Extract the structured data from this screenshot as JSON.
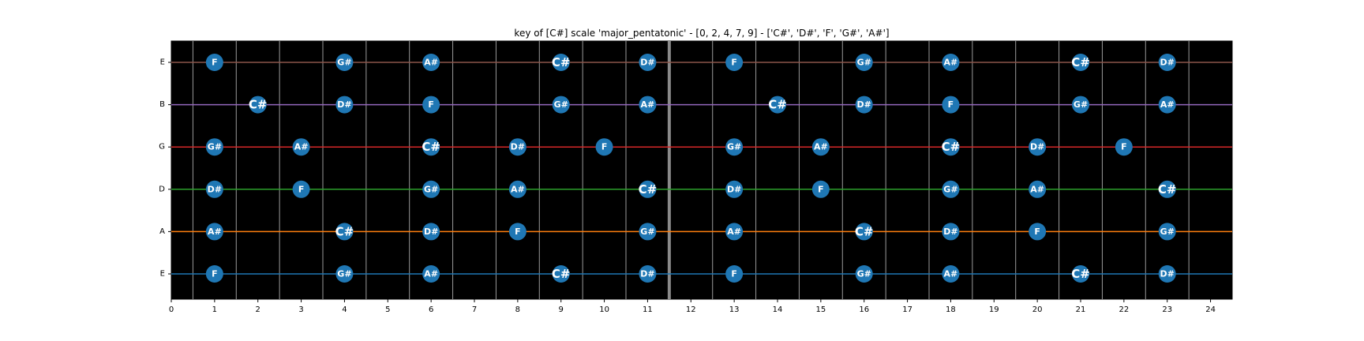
{
  "chart_data": {
    "type": "scatter",
    "title": "key of [C#] scale 'major_pentatonic' - [0, 2, 4, 7, 9] - ['C#', 'D#', 'F', 'G#', 'A#']",
    "xlabel": "",
    "ylabel": "",
    "xlim": [
      0,
      24.5
    ],
    "x_ticks": [
      "0",
      "1",
      "2",
      "3",
      "4",
      "5",
      "6",
      "7",
      "8",
      "9",
      "10",
      "11",
      "12",
      "13",
      "14",
      "15",
      "16",
      "17",
      "18",
      "19",
      "20",
      "21",
      "22",
      "23",
      "24"
    ],
    "strings": [
      {
        "name": "E",
        "color": "#1f77b4",
        "notes": [
          [
            1,
            "F"
          ],
          [
            4,
            "G#"
          ],
          [
            6,
            "A#"
          ],
          [
            9,
            "C#"
          ],
          [
            11,
            "D#"
          ],
          [
            13,
            "F"
          ],
          [
            16,
            "G#"
          ],
          [
            18,
            "A#"
          ],
          [
            21,
            "C#"
          ],
          [
            23,
            "D#"
          ]
        ]
      },
      {
        "name": "A",
        "color": "#ff7f0e",
        "notes": [
          [
            1,
            "A#"
          ],
          [
            4,
            "C#"
          ],
          [
            6,
            "D#"
          ],
          [
            8,
            "F"
          ],
          [
            11,
            "G#"
          ],
          [
            13,
            "A#"
          ],
          [
            16,
            "C#"
          ],
          [
            18,
            "D#"
          ],
          [
            20,
            "F"
          ],
          [
            23,
            "G#"
          ]
        ]
      },
      {
        "name": "D",
        "color": "#2ca02c",
        "notes": [
          [
            1,
            "D#"
          ],
          [
            3,
            "F"
          ],
          [
            6,
            "G#"
          ],
          [
            8,
            "A#"
          ],
          [
            11,
            "C#"
          ],
          [
            13,
            "D#"
          ],
          [
            15,
            "F"
          ],
          [
            18,
            "G#"
          ],
          [
            20,
            "A#"
          ],
          [
            23,
            "C#"
          ]
        ]
      },
      {
        "name": "G",
        "color": "#d62728",
        "notes": [
          [
            1,
            "G#"
          ],
          [
            3,
            "A#"
          ],
          [
            6,
            "C#"
          ],
          [
            8,
            "D#"
          ],
          [
            10,
            "F"
          ],
          [
            13,
            "G#"
          ],
          [
            15,
            "A#"
          ],
          [
            18,
            "C#"
          ],
          [
            20,
            "D#"
          ],
          [
            22,
            "F"
          ]
        ]
      },
      {
        "name": "B",
        "color": "#9467bd",
        "notes": [
          [
            2,
            "C#"
          ],
          [
            4,
            "D#"
          ],
          [
            6,
            "F"
          ],
          [
            9,
            "G#"
          ],
          [
            11,
            "A#"
          ],
          [
            14,
            "C#"
          ],
          [
            16,
            "D#"
          ],
          [
            18,
            "F"
          ],
          [
            21,
            "G#"
          ],
          [
            23,
            "A#"
          ]
        ]
      },
      {
        "name": "E",
        "color": "#8c564b",
        "notes": [
          [
            1,
            "F"
          ],
          [
            4,
            "G#"
          ],
          [
            6,
            "A#"
          ],
          [
            9,
            "C#"
          ],
          [
            11,
            "D#"
          ],
          [
            13,
            "F"
          ],
          [
            16,
            "G#"
          ],
          [
            18,
            "A#"
          ],
          [
            21,
            "C#"
          ],
          [
            23,
            "D#"
          ]
        ]
      }
    ],
    "root_note": "C#",
    "twelfth_fret_marker": 11.5,
    "grid": true,
    "background_color": "#000000",
    "marker_color": "#1f77b4"
  }
}
